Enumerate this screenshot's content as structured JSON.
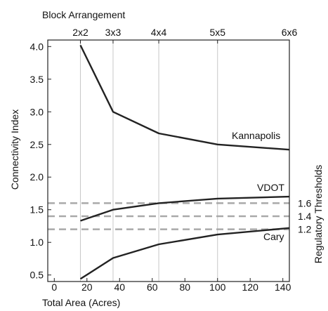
{
  "chart_data": {
    "type": "line",
    "top_axis_title": "Block Arrangement",
    "top_ticks": [
      {
        "label": "2x2",
        "x": 16
      },
      {
        "label": "3x3",
        "x": 36
      },
      {
        "label": "4x4",
        "x": 64
      },
      {
        "label": "5x5",
        "x": 100
      },
      {
        "label": "6x6",
        "x": 144
      }
    ],
    "xlabel": "Total Area (Acres)",
    "ylabel": "Connectivity Index",
    "right_label": "Regulatory Thresholds",
    "xlim": [
      -4,
      144
    ],
    "ylim": [
      0.4,
      4.1
    ],
    "xticks": [
      0,
      20,
      40,
      60,
      80,
      100,
      120,
      140
    ],
    "yticks": [
      0.5,
      1.0,
      1.5,
      2.0,
      2.5,
      3.0,
      3.5,
      4.0
    ],
    "grid": "vertical lines at top-axis ticks",
    "series": [
      {
        "name": "Kannapolis",
        "x": [
          16,
          36,
          64,
          100,
          144
        ],
        "y": [
          4.02,
          3.0,
          2.67,
          2.5,
          2.42
        ]
      },
      {
        "name": "VDOT",
        "x": [
          16,
          36,
          64,
          100,
          144
        ],
        "y": [
          1.33,
          1.5,
          1.6,
          1.67,
          1.7
        ]
      },
      {
        "name": "Cary",
        "x": [
          16,
          36,
          64,
          100,
          144
        ],
        "y": [
          0.44,
          0.76,
          0.97,
          1.12,
          1.22
        ]
      }
    ],
    "thresholds": [
      1.6,
      1.4,
      1.2
    ],
    "line_color": "#222222",
    "threshold_color": "#a9a9a9",
    "grid_color": "#c8c8c8"
  }
}
